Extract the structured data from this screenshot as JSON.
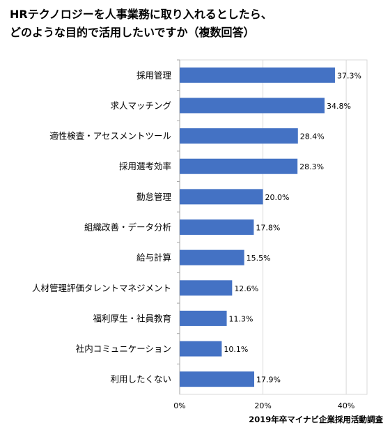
{
  "title_lines": [
    "HRテクノロジーを人事業務に取り入れるとしたら、",
    "どのような目的で活用したいですか（複数回答）"
  ],
  "source": "2019年卒マイナビ企業採用活動調査",
  "colors": {
    "bar": "#4472C4",
    "grid": "#d9d9d9",
    "axis": "#a6a6a6"
  },
  "chart_data": {
    "type": "bar",
    "orientation": "horizontal",
    "title": "HRテクノロジーを人事業務に取り入れるとしたら、どのような目的で活用したいですか（複数回答）",
    "categories": [
      "採用管理",
      "求人マッチング",
      "適性検査・アセスメントツール",
      "採用選考効率",
      "勤怠管理",
      "組織改善・データ分析",
      "給与計算",
      "人材管理評価タレントマネジメント",
      "福利厚生・社員教育",
      "社内コミュニケーション",
      "利用したくない"
    ],
    "values": [
      37.3,
      34.8,
      28.4,
      28.3,
      20.0,
      17.8,
      15.5,
      12.6,
      11.3,
      10.1,
      17.9
    ],
    "value_labels": [
      "37.3%",
      "34.8%",
      "28.4%",
      "28.3%",
      "20.0%",
      "17.8%",
      "15.5%",
      "12.6%",
      "11.3%",
      "10.1%",
      "17.9%"
    ],
    "xlim": [
      0,
      45
    ],
    "xticks": [
      0,
      20,
      40
    ],
    "xtick_labels": [
      "0%",
      "20%",
      "40%"
    ],
    "grid": true,
    "legend": "none"
  }
}
